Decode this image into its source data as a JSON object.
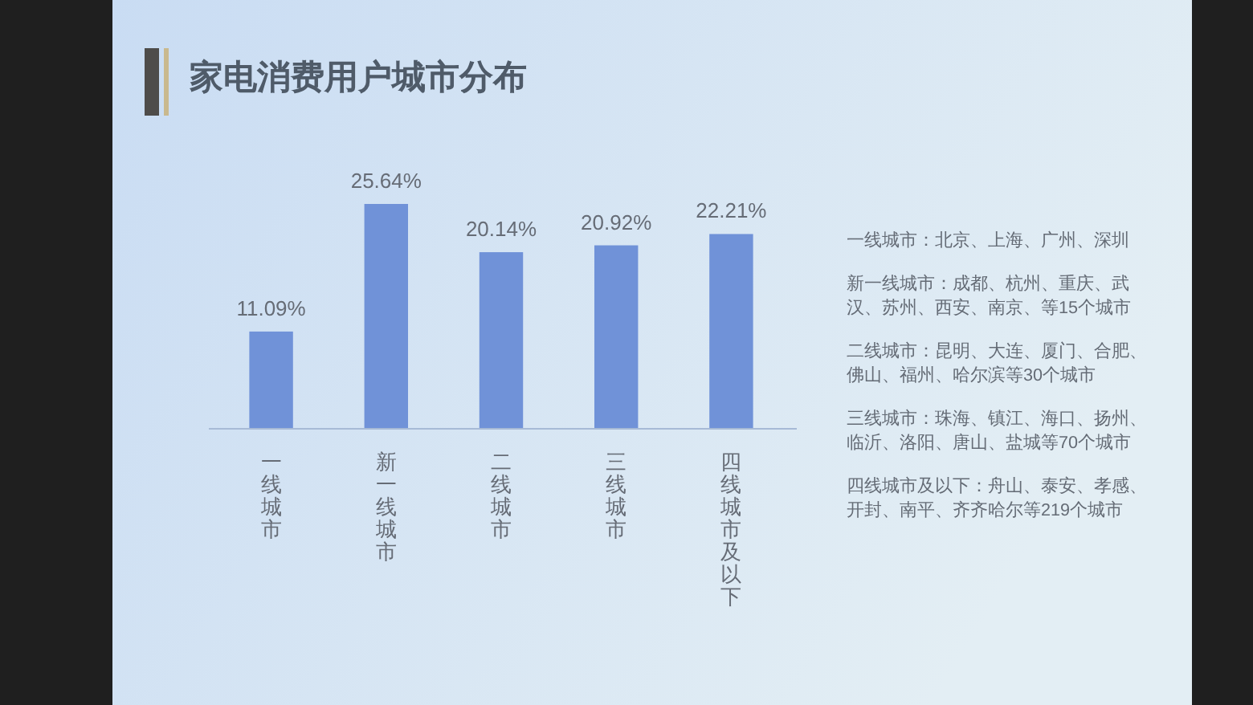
{
  "chart_data": {
    "type": "bar",
    "title": "家电消费用户城市分布",
    "categories": [
      "一线城市",
      "新一线城市",
      "二线城市",
      "三线城市",
      "四线城市及以下"
    ],
    "values": [
      11.09,
      25.64,
      20.14,
      20.92,
      22.21
    ],
    "color": "#7092d8",
    "value_labels": [
      "11.09%",
      "25.64%",
      "20.14%",
      "20.92%",
      "22.21%"
    ],
    "annotations": [
      "一线城市：北京、上海、广州、深圳",
      "新一线城市：成都、杭州、重庆、武汉、苏州、西安、南京、等15个城市",
      "二线城市：昆明、大连、厦门、合肥、佛山、福州、哈尔滨等30个城市",
      "三线城市：珠海、镇江、海口、扬州、临沂、洛阳、唐山、盐城等70个城市",
      "四线城市及以下：舟山、泰安、孝感、开封、南平、齐齐哈尔等219个城市"
    ]
  }
}
